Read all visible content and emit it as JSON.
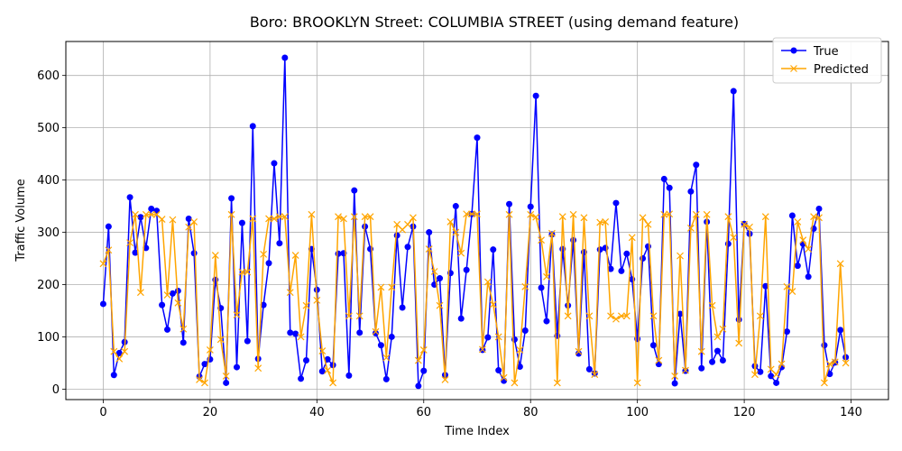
{
  "chart_data": {
    "type": "line",
    "title": "Boro: BROOKLYN Street: COLUMBIA STREET (using demand feature)",
    "xlabel": "Time Index",
    "ylabel": "Traffic Volume",
    "xlim": [
      -7,
      147
    ],
    "ylim": [
      -20,
      665
    ],
    "xticks": [
      0,
      20,
      40,
      60,
      80,
      100,
      120,
      140
    ],
    "yticks": [
      0,
      100,
      200,
      300,
      400,
      500,
      600
    ],
    "grid": true,
    "legend_position": "top-right",
    "series": [
      {
        "name": "True",
        "color": "#0000ff",
        "marker": "circle",
        "values": [
          163,
          311,
          27,
          69,
          90,
          367,
          261,
          329,
          270,
          345,
          341,
          161,
          114,
          183,
          188,
          89,
          326,
          260,
          24,
          48,
          57,
          209,
          155,
          12,
          365,
          42,
          318,
          92,
          503,
          58,
          161,
          241,
          432,
          279,
          634,
          108,
          106,
          20,
          55,
          268,
          190,
          34,
          57,
          46,
          259,
          260,
          26,
          380,
          108,
          311,
          268,
          107,
          84,
          19,
          100,
          294,
          156,
          272,
          311,
          6,
          35,
          300,
          200,
          212,
          27,
          222,
          350,
          135,
          228,
          335,
          481,
          75,
          99,
          267,
          36,
          16,
          354,
          95,
          43,
          112,
          349,
          561,
          194,
          130,
          296,
          102,
          268,
          160,
          285,
          68,
          262,
          38,
          30,
          267,
          270,
          230,
          356,
          226,
          259,
          210,
          96,
          250,
          273,
          84,
          48,
          402,
          385,
          11,
          144,
          35,
          378,
          429,
          40,
          320,
          52,
          73,
          55,
          278,
          570,
          133,
          316,
          297,
          44,
          33,
          197,
          25,
          12,
          42,
          110,
          332,
          236,
          278,
          215,
          307,
          345,
          84,
          29,
          51,
          113,
          61
        ]
      },
      {
        "name": "Predicted",
        "color": "#ffa500",
        "marker": "x",
        "values": [
          240,
          266,
          72,
          58,
          72,
          280,
          334,
          185,
          334,
          334,
          334,
          325,
          180,
          324,
          165,
          115,
          310,
          320,
          18,
          12,
          75,
          256,
          95,
          25,
          334,
          142,
          224,
          224,
          326,
          40,
          258,
          326,
          326,
          330,
          330,
          185,
          256,
          100,
          160,
          334,
          170,
          73,
          36,
          12,
          330,
          326,
          140,
          330,
          140,
          330,
          330,
          110,
          195,
          60,
          195,
          315,
          305,
          315,
          328,
          55,
          75,
          268,
          225,
          160,
          18,
          320,
          300,
          260,
          335,
          335,
          335,
          76,
          205,
          162,
          100,
          22,
          334,
          12,
          75,
          196,
          334,
          329,
          285,
          215,
          298,
          12,
          330,
          140,
          334,
          72,
          328,
          140,
          28,
          319,
          320,
          140,
          134,
          140,
          140,
          290,
          12,
          328,
          315,
          140,
          55,
          334,
          335,
          25,
          255,
          36,
          308,
          334,
          72,
          334,
          160,
          100,
          115,
          330,
          290,
          88,
          315,
          310,
          28,
          140,
          330,
          38,
          28,
          48,
          196,
          187,
          320,
          285,
          268,
          330,
          328,
          12,
          48,
          52,
          240,
          50
        ]
      }
    ]
  }
}
